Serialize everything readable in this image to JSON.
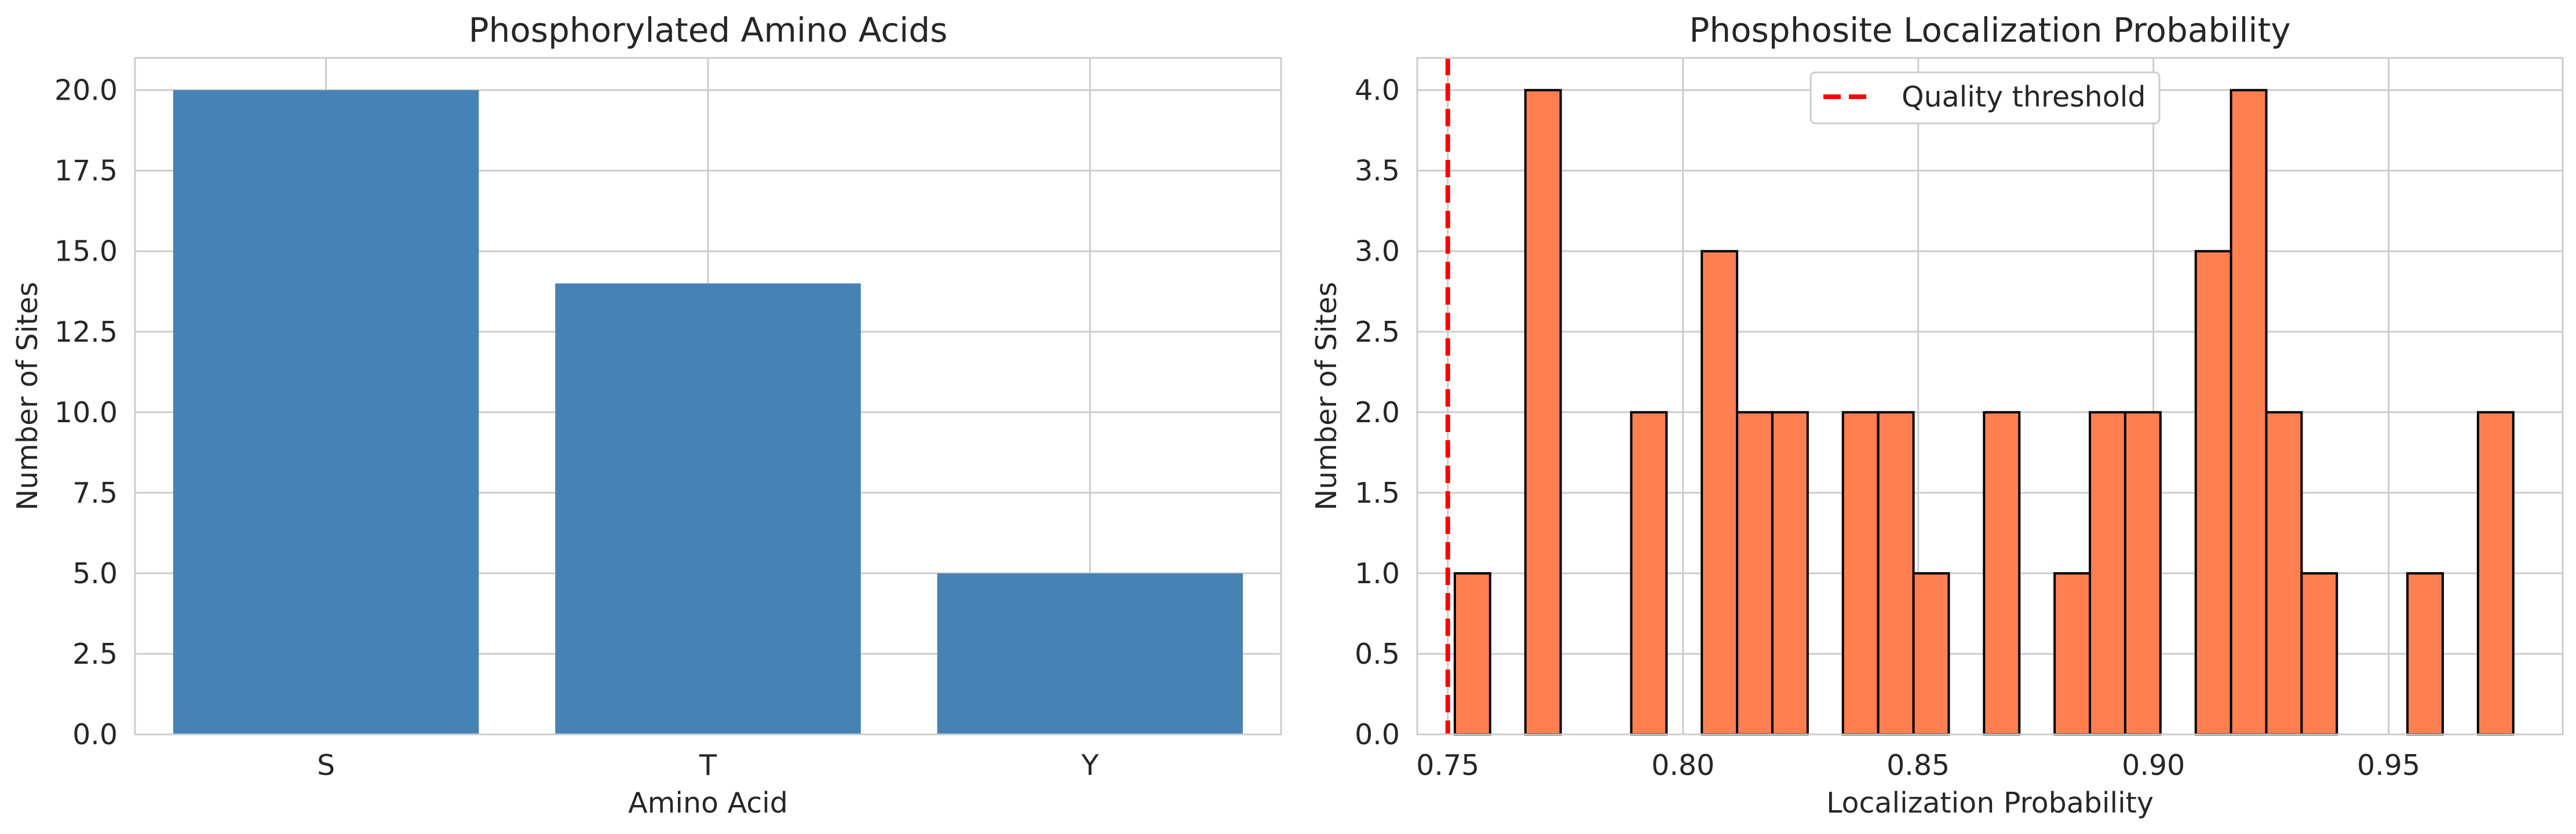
{
  "chart_data": [
    {
      "type": "bar",
      "title": "Phosphorylated Amino Acids",
      "xlabel": "Amino Acid",
      "ylabel": "Number of Sites",
      "categories": [
        "S",
        "T",
        "Y"
      ],
      "values": [
        20,
        14,
        5
      ],
      "ylim": [
        0,
        21
      ],
      "yticks": [
        0,
        2.5,
        5,
        7.5,
        10,
        12.5,
        15,
        17.5,
        20
      ],
      "ytick_labels": [
        "0.0",
        "2.5",
        "5.0",
        "7.5",
        "10.0",
        "12.5",
        "15.0",
        "17.5",
        "20.0"
      ],
      "grid": true,
      "color": "#4682b4"
    },
    {
      "type": "bar",
      "title": "Phosphosite Localization Probability",
      "xlabel": "Localization Probability",
      "ylabel": "Number of Sites",
      "histogram": true,
      "bins": [
        {
          "x0": 0.7515,
          "x1": 0.759,
          "count": 1
        },
        {
          "x0": 0.7665,
          "x1": 0.774,
          "count": 4
        },
        {
          "x0": 0.789,
          "x1": 0.7965,
          "count": 2
        },
        {
          "x0": 0.804,
          "x1": 0.8115,
          "count": 3
        },
        {
          "x0": 0.8115,
          "x1": 0.819,
          "count": 2
        },
        {
          "x0": 0.819,
          "x1": 0.8265,
          "count": 2
        },
        {
          "x0": 0.834,
          "x1": 0.8415,
          "count": 2
        },
        {
          "x0": 0.8415,
          "x1": 0.849,
          "count": 2
        },
        {
          "x0": 0.849,
          "x1": 0.8565,
          "count": 1
        },
        {
          "x0": 0.864,
          "x1": 0.8715,
          "count": 2
        },
        {
          "x0": 0.879,
          "x1": 0.8865,
          "count": 1
        },
        {
          "x0": 0.8865,
          "x1": 0.894,
          "count": 2
        },
        {
          "x0": 0.894,
          "x1": 0.9015,
          "count": 2
        },
        {
          "x0": 0.909,
          "x1": 0.9165,
          "count": 3
        },
        {
          "x0": 0.9165,
          "x1": 0.924,
          "count": 4
        },
        {
          "x0": 0.924,
          "x1": 0.9315,
          "count": 2
        },
        {
          "x0": 0.9315,
          "x1": 0.939,
          "count": 1
        },
        {
          "x0": 0.954,
          "x1": 0.9615,
          "count": 1
        },
        {
          "x0": 0.969,
          "x1": 0.9765,
          "count": 2
        }
      ],
      "xlim": [
        0.7435,
        0.987
      ],
      "ylim": [
        0,
        4.2
      ],
      "xticks": [
        0.75,
        0.8,
        0.85,
        0.9,
        0.95
      ],
      "xtick_labels": [
        "0.75",
        "0.80",
        "0.85",
        "0.90",
        "0.95"
      ],
      "yticks": [
        0,
        0.5,
        1,
        1.5,
        2,
        2.5,
        3,
        3.5,
        4
      ],
      "ytick_labels": [
        "0.0",
        "0.5",
        "1.0",
        "1.5",
        "2.0",
        "2.5",
        "3.0",
        "3.5",
        "4.0"
      ],
      "threshold": {
        "x": 0.75,
        "label": "Quality threshold",
        "color": "#ff0000"
      },
      "legend": {
        "position": "top-center",
        "entries": [
          "Quality threshold"
        ]
      },
      "grid": true,
      "color": "#ff7f50",
      "edgecolor": "#000000"
    }
  ]
}
